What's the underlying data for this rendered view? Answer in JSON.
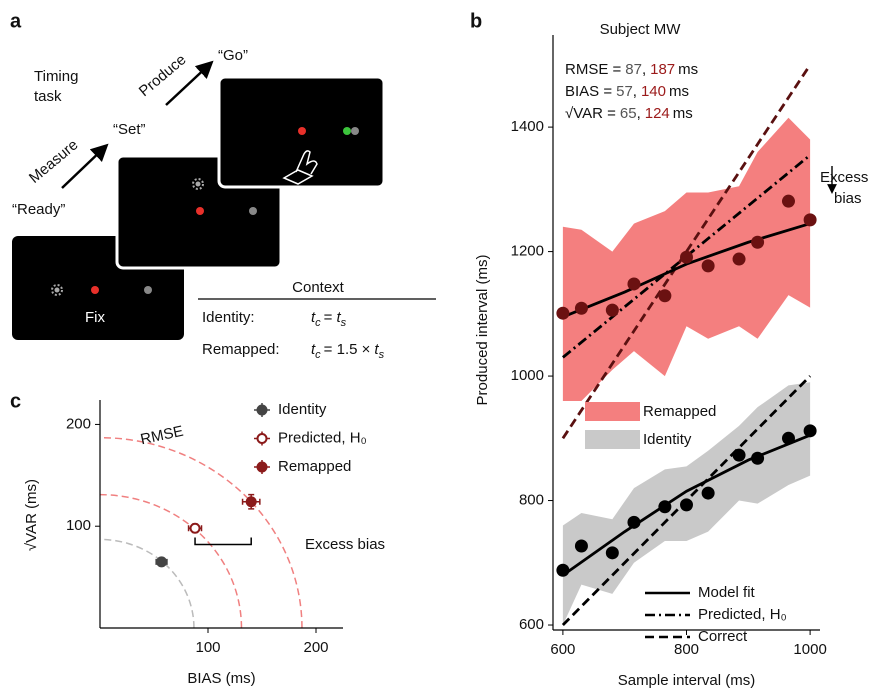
{
  "diagram": {
    "label": "a",
    "task_title_lines": [
      "Timing",
      "task"
    ],
    "steps": [
      "Measure",
      "Produce"
    ],
    "cues": [
      "“Ready”",
      "“Set”",
      "“Go”"
    ],
    "fix_label": "Fix",
    "context": {
      "title": "Context",
      "rows": [
        {
          "name": "Identity:",
          "lhs": [
            "t",
            "c"
          ],
          "op": "=",
          "rhs": [
            "t",
            "s"
          ]
        },
        {
          "name": "Remapped:",
          "lhs": [
            "t",
            "c"
          ],
          "op": "= 1.5 ×",
          "rhs": [
            "t",
            "s"
          ]
        }
      ]
    }
  },
  "chart_data": [
    {
      "type": "line",
      "label": "b",
      "title": "Subject MW",
      "x_label": "Sample interval (ms)",
      "y_label": "Produced interval (ms)",
      "xlim": [
        584,
        1016
      ],
      "ylim": [
        592,
        1548
      ],
      "xticks": [
        600,
        800,
        1000
      ],
      "yticks": [
        600,
        800,
        1000,
        1200,
        1400
      ],
      "bands": [
        {
          "name": "Remapped",
          "color": "#f47f7f",
          "x": [
            600,
            630,
            680,
            715,
            765,
            800,
            835,
            885,
            915,
            965,
            1000
          ],
          "lower": [
            960,
            960,
            1010,
            1040,
            1000,
            1080,
            1060,
            1080,
            1060,
            1130,
            1110
          ],
          "upper": [
            1240,
            1235,
            1200,
            1245,
            1265,
            1295,
            1295,
            1305,
            1360,
            1415,
            1380
          ]
        },
        {
          "name": "Identity",
          "color": "#c9c9c9",
          "x": [
            600,
            630,
            680,
            715,
            765,
            800,
            835,
            885,
            915,
            965,
            1000
          ],
          "lower": [
            600,
            665,
            650,
            700,
            735,
            735,
            750,
            800,
            795,
            825,
            840
          ],
          "upper": [
            760,
            780,
            770,
            820,
            850,
            855,
            880,
            920,
            950,
            985,
            990
          ]
        }
      ],
      "line_styles": [
        {
          "name": "Model fit",
          "dash": "solid"
        },
        {
          "name": "Predicted, H₀",
          "dash": "dashdot"
        },
        {
          "name": "Correct",
          "dash": "dashed"
        }
      ],
      "lines": [
        {
          "dash": "dashed",
          "color": "#5a1010",
          "x": [
            600,
            1000
          ],
          "values": [
            900,
            1500
          ]
        },
        {
          "dash": "dashed",
          "color": "#000000",
          "x": [
            600,
            1000
          ],
          "values": [
            600,
            1000
          ]
        },
        {
          "dash": "dashdot",
          "color": "#000000",
          "x": [
            600,
            1000
          ],
          "values": [
            1030,
            1355
          ]
        },
        {
          "dash": "solid",
          "color": "#000000",
          "x": [
            600,
            700,
            800,
            900,
            1000
          ],
          "values": [
            1095,
            1135,
            1180,
            1215,
            1245
          ]
        },
        {
          "dash": "solid",
          "color": "#000000",
          "x": [
            600,
            700,
            800,
            900,
            1000
          ],
          "values": [
            680,
            750,
            815,
            865,
            905
          ]
        }
      ],
      "points": [
        {
          "color": "#6b1111",
          "x": [
            600,
            630,
            680,
            715,
            765,
            800,
            835,
            885,
            915,
            965,
            1000
          ],
          "values": [
            1101,
            1109,
            1106,
            1148,
            1129,
            1191,
            1177,
            1188,
            1215,
            1281,
            1251
          ]
        },
        {
          "color": "#000000",
          "x": [
            600,
            630,
            680,
            715,
            765,
            800,
            835,
            885,
            915,
            965,
            1000
          ],
          "values": [
            688,
            727,
            716,
            765,
            790,
            793,
            812,
            873,
            868,
            900,
            912
          ]
        }
      ],
      "stats": {
        "colors": [
          "#555555",
          "#9b1a1a"
        ],
        "rows": [
          {
            "label": "RMSE =",
            "values": [
              87,
              187
            ],
            "separator": ",",
            "unit": "ms"
          },
          {
            "label": "BIAS =",
            "values": [
              57,
              140
            ],
            "separator": ",",
            "unit": "ms"
          },
          {
            "label": "√VAR =",
            "values": [
              65,
              124
            ],
            "separator": ",",
            "unit": "ms"
          }
        ]
      },
      "annotation_lines": [
        "Excess",
        "bias"
      ]
    },
    {
      "type": "scatter",
      "label": "c",
      "x_label": "BIAS (ms)",
      "y_label": "√VAR (ms)",
      "xlim": [
        0,
        225
      ],
      "ylim": [
        0,
        224
      ],
      "xticks": [
        100,
        200
      ],
      "yticks": [
        100,
        200
      ],
      "arcs": [
        {
          "radius": 87,
          "color": "#bbbbbb"
        },
        {
          "radius": 131,
          "color": "#f08080"
        },
        {
          "radius": 187,
          "color": "#f08080"
        }
      ],
      "arc_label": "RMSE",
      "series": [
        {
          "name": "Identity",
          "color": "#444444",
          "marker": "filled",
          "x": [
            57
          ],
          "values": [
            65
          ],
          "x_err": [
            5
          ],
          "y_err": [
            3
          ]
        },
        {
          "name": "Predicted, H₀",
          "color": "#8b1a1a",
          "marker": "open",
          "x": [
            88
          ],
          "values": [
            98
          ],
          "x_err": [
            6
          ],
          "y_err": [
            4
          ]
        },
        {
          "name": "Remapped",
          "color": "#8b1a1a",
          "marker": "filled",
          "x": [
            140
          ],
          "values": [
            124
          ],
          "x_err": [
            8
          ],
          "y_err": [
            7
          ]
        }
      ],
      "bracket": {
        "x": [
          88,
          140
        ],
        "y": 82,
        "label": "Excess bias"
      }
    }
  ]
}
